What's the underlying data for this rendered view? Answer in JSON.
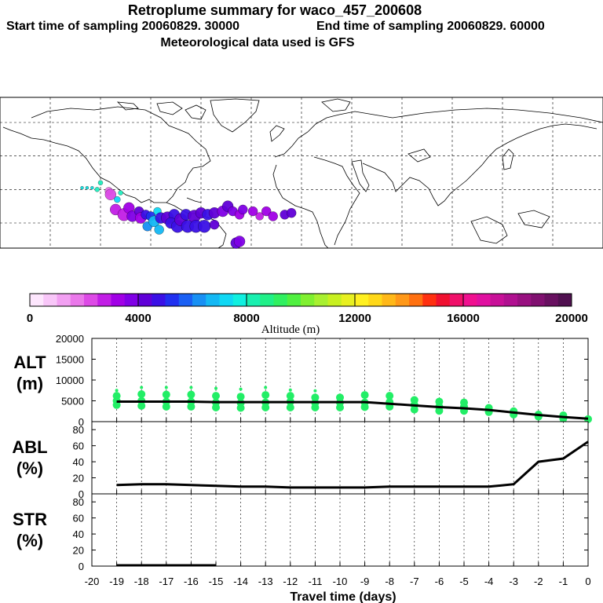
{
  "header": {
    "title": "Retroplume summary for waco_457_200608",
    "start": "Start time of sampling 20060829. 30000",
    "end": "End time of sampling 20060829. 60000",
    "met": "Meteorological data used is GFS"
  },
  "colorbar": {
    "label": "Altitude (m)",
    "ticks": [
      "0",
      "4000",
      "8000",
      "12000",
      "16000",
      "20000"
    ],
    "colors": [
      "#fde6fd",
      "#f8c6f8",
      "#f2a0f2",
      "#ea78ea",
      "#dd4ae6",
      "#c21ee6",
      "#a100e6",
      "#8000e6",
      "#6000d8",
      "#3a10e6",
      "#2030f0",
      "#1a60f4",
      "#1890f4",
      "#14b8f4",
      "#10d8f4",
      "#10f0e0",
      "#18f0b0",
      "#20f088",
      "#30f060",
      "#50f040",
      "#80f030",
      "#a8f030",
      "#c8f020",
      "#e8f020",
      "#fff020",
      "#ffd818",
      "#ffb818",
      "#ff9818",
      "#ff7010",
      "#ff3010",
      "#f01030",
      "#f0106a",
      "#f01090",
      "#e010a0",
      "#c81098",
      "#b01090",
      "#981080",
      "#801070",
      "#681060",
      "#501050"
    ]
  },
  "map": {
    "plume": [
      {
        "lon": -131,
        "lat": 21,
        "c": "#10e0e0",
        "r": 2
      },
      {
        "lon": -128,
        "lat": 21,
        "c": "#10e0e0",
        "r": 2
      },
      {
        "lon": -125,
        "lat": 21,
        "c": "#10e0e0",
        "r": 2
      },
      {
        "lon": -122,
        "lat": 20,
        "c": "#20f0c0",
        "r": 3
      },
      {
        "lon": -120,
        "lat": 24,
        "c": "#20f0c0",
        "r": 3
      },
      {
        "lon": -115,
        "lat": 19,
        "c": "#ea78ea",
        "r": 5
      },
      {
        "lon": -114,
        "lat": 17,
        "c": "#dd4ae6",
        "r": 7
      },
      {
        "lon": -110,
        "lat": 14,
        "c": "#10d8f4",
        "r": 4
      },
      {
        "lon": -111,
        "lat": 8,
        "c": "#c21ee6",
        "r": 7
      },
      {
        "lon": -108,
        "lat": 18,
        "c": "#20f0c0",
        "r": 3
      },
      {
        "lon": -106,
        "lat": 5,
        "c": "#c21ee6",
        "r": 8
      },
      {
        "lon": -103,
        "lat": 9,
        "c": "#a100e6",
        "r": 7
      },
      {
        "lon": -101,
        "lat": 4,
        "c": "#8000e6",
        "r": 7
      },
      {
        "lon": -97,
        "lat": 7,
        "c": "#6000d8",
        "r": 6
      },
      {
        "lon": -96,
        "lat": 3,
        "c": "#a100e6",
        "r": 7
      },
      {
        "lon": -93,
        "lat": 5,
        "c": "#3a10e6",
        "r": 6
      },
      {
        "lon": -92,
        "lat": -2,
        "c": "#1890f4",
        "r": 6
      },
      {
        "lon": -90,
        "lat": 4,
        "c": "#2030f0",
        "r": 6
      },
      {
        "lon": -88,
        "lat": 1,
        "c": "#14b8f4",
        "r": 7
      },
      {
        "lon": -85,
        "lat": -4,
        "c": "#14b8f4",
        "r": 6
      },
      {
        "lon": -86,
        "lat": 7,
        "c": "#10d8f4",
        "r": 5
      },
      {
        "lon": -84,
        "lat": 3,
        "c": "#3a10e6",
        "r": 7
      },
      {
        "lon": -80,
        "lat": 3,
        "c": "#6000d8",
        "r": 8
      },
      {
        "lon": -76,
        "lat": 5,
        "c": "#3a10e6",
        "r": 7
      },
      {
        "lon": -78,
        "lat": 0,
        "c": "#3a10e6",
        "r": 7
      },
      {
        "lon": -74,
        "lat": -2,
        "c": "#3a10e6",
        "r": 8
      },
      {
        "lon": -72,
        "lat": 2,
        "c": "#6000d8",
        "r": 8
      },
      {
        "lon": -69,
        "lat": 5,
        "c": "#3a10e6",
        "r": 7
      },
      {
        "lon": -68,
        "lat": -2,
        "c": "#3a10e6",
        "r": 8
      },
      {
        "lon": -64,
        "lat": 4,
        "c": "#6000d8",
        "r": 8
      },
      {
        "lon": -63,
        "lat": -2,
        "c": "#3a10e6",
        "r": 8
      },
      {
        "lon": -60,
        "lat": 6,
        "c": "#6000d8",
        "r": 7
      },
      {
        "lon": -58,
        "lat": -2,
        "c": "#3a10e6",
        "r": 8
      },
      {
        "lon": -56,
        "lat": 5,
        "c": "#3a10e6",
        "r": 7
      },
      {
        "lon": -52,
        "lat": 6,
        "c": "#6000d8",
        "r": 7
      },
      {
        "lon": -52,
        "lat": -1,
        "c": "#6000d8",
        "r": 6
      },
      {
        "lon": -47,
        "lat": 7,
        "c": "#8000e6",
        "r": 7
      },
      {
        "lon": -44,
        "lat": 10,
        "c": "#6000d8",
        "r": 7
      },
      {
        "lon": -41,
        "lat": 7,
        "c": "#8000e6",
        "r": 6
      },
      {
        "lon": -37,
        "lat": 5,
        "c": "#a100e6",
        "r": 6
      },
      {
        "lon": -35,
        "lat": 8,
        "c": "#8000e6",
        "r": 6
      },
      {
        "lon": -29,
        "lat": 7,
        "c": "#a100e6",
        "r": 6
      },
      {
        "lon": -25,
        "lat": 4,
        "c": "#c21ee6",
        "r": 5
      },
      {
        "lon": -21,
        "lat": 7,
        "c": "#a100e6",
        "r": 6
      },
      {
        "lon": -17,
        "lat": 4,
        "c": "#a100e6",
        "r": 6
      },
      {
        "lon": -10,
        "lat": 5,
        "c": "#6000d8",
        "r": 6
      },
      {
        "lon": -6,
        "lat": 6,
        "c": "#6000d8",
        "r": 6
      },
      {
        "lon": -39,
        "lat": -12,
        "c": "#6000d8",
        "r": 7
      },
      {
        "lon": -37,
        "lat": -11,
        "c": "#8000e6",
        "r": 7
      }
    ]
  },
  "chart_data": [
    {
      "type": "scatter",
      "name": "ALT",
      "ylabel": "ALT (m)",
      "ylim": [
        0,
        20000
      ],
      "yticks": [
        "0",
        "5000",
        "10000",
        "15000",
        "20000"
      ],
      "xlim": [
        -20,
        0
      ],
      "line": {
        "x": [
          -19,
          -18,
          -17,
          -16,
          -15,
          -14,
          -13,
          -12,
          -11,
          -10,
          -9,
          -8,
          -7,
          -6,
          -5,
          -4,
          -3,
          -2,
          -1,
          0
        ],
        "y": [
          4800,
          4800,
          4800,
          4800,
          4700,
          4700,
          4700,
          4700,
          4700,
          4700,
          4700,
          4300,
          3900,
          3500,
          3200,
          2800,
          2200,
          1600,
          1100,
          700
        ]
      },
      "points": [
        {
          "x": -19,
          "y": 4000
        },
        {
          "x": -19,
          "y": 5000
        },
        {
          "x": -19,
          "y": 6200
        },
        {
          "x": -19,
          "y": 7500
        },
        {
          "x": -18,
          "y": 3800
        },
        {
          "x": -18,
          "y": 5000
        },
        {
          "x": -18,
          "y": 6600
        },
        {
          "x": -18,
          "y": 8200
        },
        {
          "x": -17,
          "y": 3600
        },
        {
          "x": -17,
          "y": 4800
        },
        {
          "x": -17,
          "y": 6500
        },
        {
          "x": -17,
          "y": 8200
        },
        {
          "x": -16,
          "y": 3600
        },
        {
          "x": -16,
          "y": 4800
        },
        {
          "x": -16,
          "y": 6500
        },
        {
          "x": -16,
          "y": 8200
        },
        {
          "x": -15,
          "y": 3400
        },
        {
          "x": -15,
          "y": 4600
        },
        {
          "x": -15,
          "y": 6200
        },
        {
          "x": -15,
          "y": 8000
        },
        {
          "x": -14,
          "y": 3300
        },
        {
          "x": -14,
          "y": 4500
        },
        {
          "x": -14,
          "y": 6000
        },
        {
          "x": -14,
          "y": 7800
        },
        {
          "x": -13,
          "y": 3400
        },
        {
          "x": -13,
          "y": 4600
        },
        {
          "x": -13,
          "y": 6400
        },
        {
          "x": -13,
          "y": 8200
        },
        {
          "x": -12,
          "y": 3400
        },
        {
          "x": -12,
          "y": 4800
        },
        {
          "x": -12,
          "y": 6200
        },
        {
          "x": -12,
          "y": 7600
        },
        {
          "x": -11,
          "y": 3400
        },
        {
          "x": -11,
          "y": 4500
        },
        {
          "x": -11,
          "y": 5800
        },
        {
          "x": -11,
          "y": 7400
        },
        {
          "x": -10,
          "y": 3400
        },
        {
          "x": -10,
          "y": 4600
        },
        {
          "x": -10,
          "y": 5800
        },
        {
          "x": -9,
          "y": 3500
        },
        {
          "x": -9,
          "y": 4600
        },
        {
          "x": -9,
          "y": 6400
        },
        {
          "x": -8,
          "y": 3600
        },
        {
          "x": -8,
          "y": 4700
        },
        {
          "x": -8,
          "y": 6200
        },
        {
          "x": -7,
          "y": 2900
        },
        {
          "x": -7,
          "y": 4000
        },
        {
          "x": -7,
          "y": 5200
        },
        {
          "x": -6,
          "y": 2600
        },
        {
          "x": -6,
          "y": 3600
        },
        {
          "x": -6,
          "y": 4800
        },
        {
          "x": -5,
          "y": 2600
        },
        {
          "x": -5,
          "y": 3600
        },
        {
          "x": -5,
          "y": 4600
        },
        {
          "x": -4,
          "y": 2300
        },
        {
          "x": -4,
          "y": 3300
        },
        {
          "x": -3,
          "y": 1700
        },
        {
          "x": -3,
          "y": 2500
        },
        {
          "x": -2,
          "y": 1200
        },
        {
          "x": -2,
          "y": 1700
        },
        {
          "x": -1,
          "y": 700
        },
        {
          "x": -1,
          "y": 1500
        },
        {
          "x": 0,
          "y": 600
        }
      ]
    },
    {
      "type": "line",
      "name": "ABL",
      "ylabel": "ABL (%)",
      "ylim": [
        0,
        90
      ],
      "yticks": [
        "0",
        "20",
        "40",
        "60",
        "80"
      ],
      "xlim": [
        -20,
        0
      ],
      "x": [
        -19,
        -18,
        -17,
        -16,
        -15,
        -14,
        -13,
        -12,
        -11,
        -10,
        -9,
        -8,
        -7,
        -6,
        -5,
        -4,
        -3,
        -2,
        -1,
        0
      ],
      "y": [
        11,
        12,
        12,
        11,
        10,
        9,
        9,
        8,
        8,
        8,
        8,
        9,
        9,
        9,
        9,
        9,
        12,
        40,
        44,
        65
      ]
    },
    {
      "type": "line",
      "name": "STR",
      "ylabel": "STR (%)",
      "ylim": [
        0,
        90
      ],
      "yticks": [
        "0",
        "20",
        "40",
        "60",
        "80"
      ],
      "xlim": [
        -20,
        0
      ],
      "x": [
        -19,
        -18,
        -17,
        -16,
        -15
      ],
      "y": [
        1,
        1,
        1,
        1,
        1
      ],
      "xlabel": "Travel time (days)",
      "xticks": [
        "-20",
        "-19",
        "-18",
        "-17",
        "-16",
        "-15",
        "-14",
        "-13",
        "-12",
        "-11",
        "-10",
        "-9",
        "-8",
        "-7",
        "-6",
        "-5",
        "-4",
        "-3",
        "-2",
        "-1",
        "0"
      ]
    }
  ],
  "panel_labels": {
    "alt": [
      "ALT",
      "(m)"
    ],
    "abl": [
      "ABL",
      "(%)"
    ],
    "str": [
      "STR",
      "(%)"
    ]
  }
}
